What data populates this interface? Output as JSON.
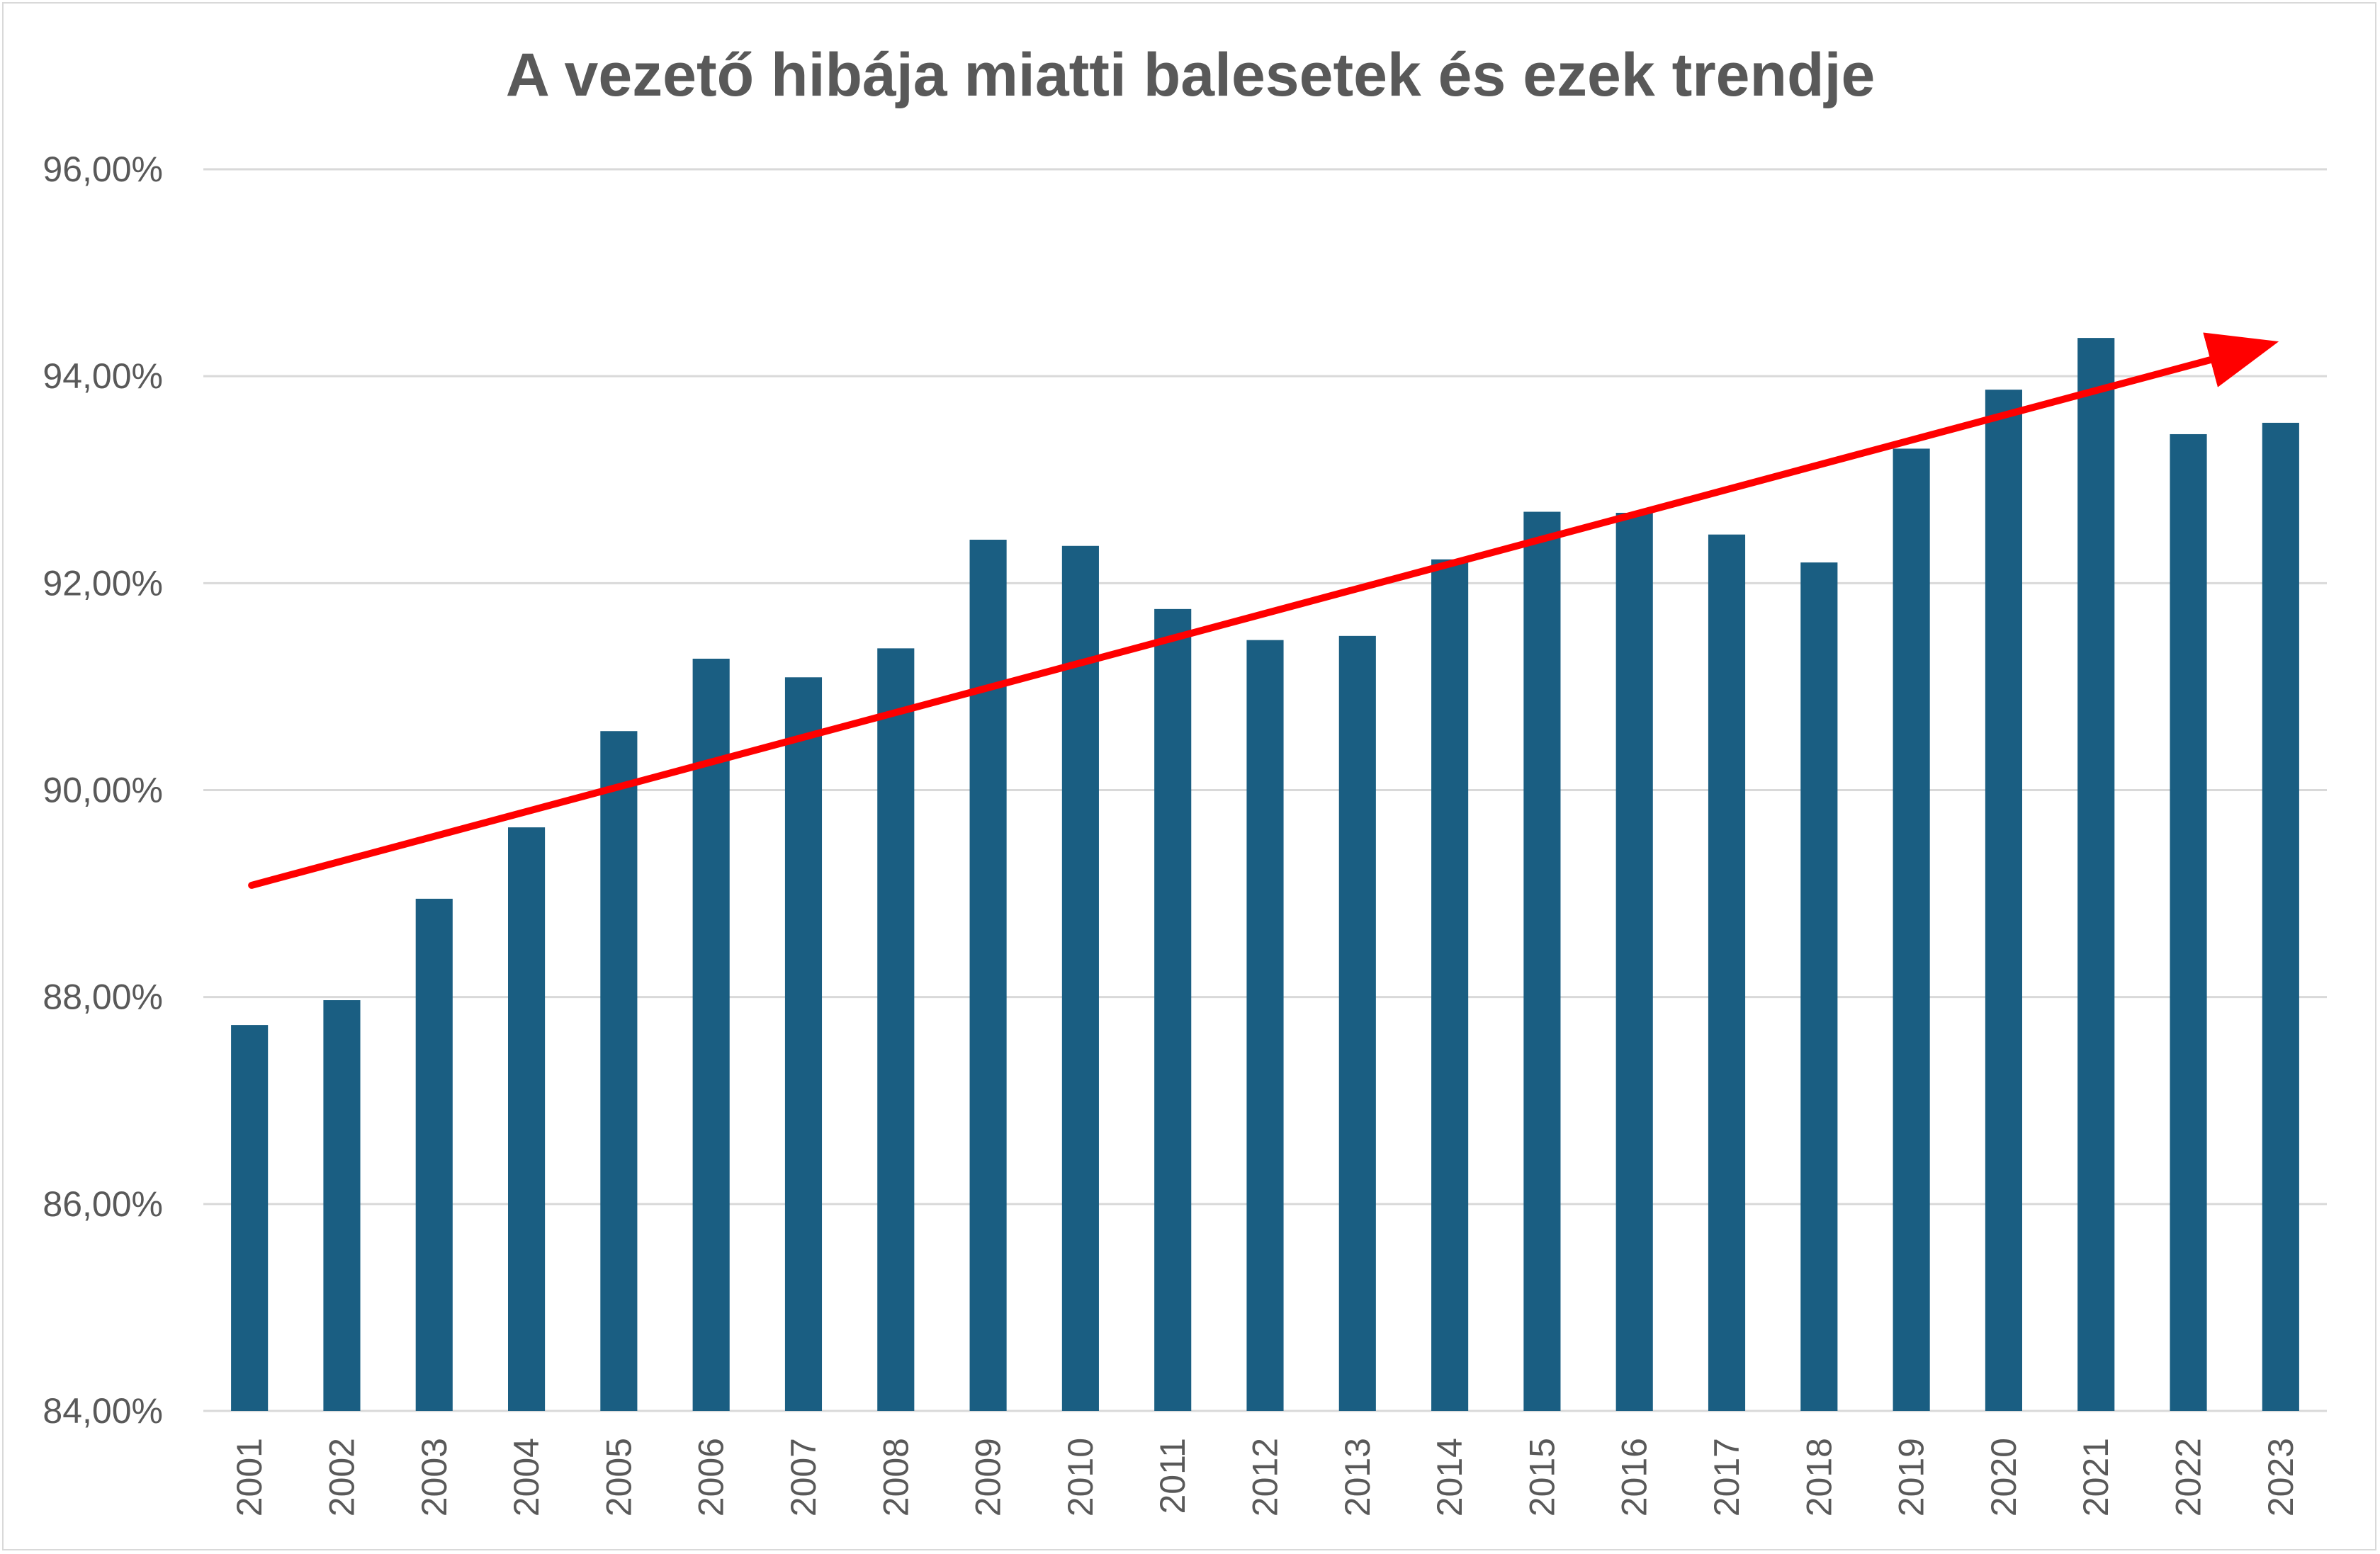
{
  "colors": {
    "bar": "#1a5e82",
    "trend_arrow": "#ff0000",
    "grid": "#d9d9d9",
    "text": "#595959"
  },
  "chart_data": {
    "type": "bar",
    "title": "A vezető hibája miatti balesetek és ezek trendje",
    "xlabel": "",
    "ylabel": "",
    "categories": [
      "2001",
      "2002",
      "2003",
      "2004",
      "2005",
      "2006",
      "2007",
      "2008",
      "2009",
      "2010",
      "2011",
      "2012",
      "2013",
      "2014",
      "2015",
      "2016",
      "2017",
      "2018",
      "2019",
      "2020",
      "2021",
      "2022",
      "2023"
    ],
    "series": [
      {
        "values": [
          87.73,
          87.97,
          88.95,
          89.64,
          90.57,
          91.27,
          91.09,
          91.37,
          92.42,
          92.36,
          91.75,
          91.45,
          91.49,
          92.23,
          92.69,
          92.68,
          92.47,
          92.2,
          93.3,
          93.87,
          94.37,
          93.44,
          93.55
        ]
      }
    ],
    "ylim": [
      84,
      96
    ],
    "yticks": [
      84,
      86,
      88,
      90,
      92,
      94,
      96
    ],
    "ytick_labels": [
      "84,00%",
      "86,00%",
      "88,00%",
      "90,00%",
      "92,00%",
      "94,00%",
      "96,00%"
    ],
    "grid": true,
    "legend": "none",
    "trend_arrow": {
      "color": "#ff0000",
      "start": {
        "x": "2001",
        "y": 89.08
      },
      "end": {
        "x": "2023",
        "y": 94.3
      }
    }
  }
}
